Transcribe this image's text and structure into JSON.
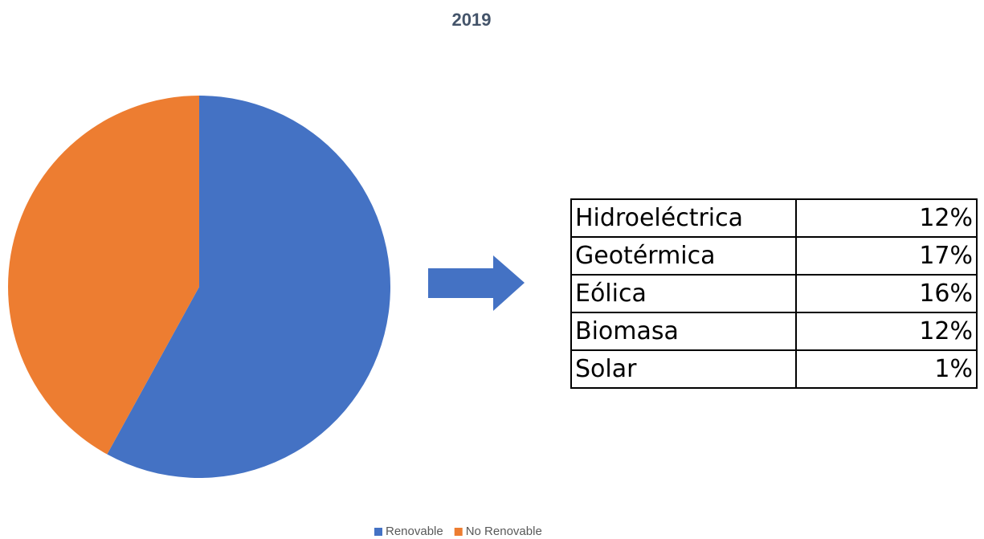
{
  "chart_data": {
    "type": "pie",
    "title": "2019",
    "categories": [
      "Renovable",
      "No Renovable"
    ],
    "values": [
      58,
      42
    ],
    "colors": [
      "#4472c4",
      "#ed7d31"
    ],
    "legend": "bottom"
  },
  "table": {
    "rows": [
      [
        "Hidroeléctrica",
        "12%"
      ],
      [
        "Geotérmica",
        "17%"
      ],
      [
        "Eólica",
        "16%"
      ],
      [
        "Biomasa",
        "12%"
      ],
      [
        "Solar",
        "1%"
      ]
    ]
  }
}
